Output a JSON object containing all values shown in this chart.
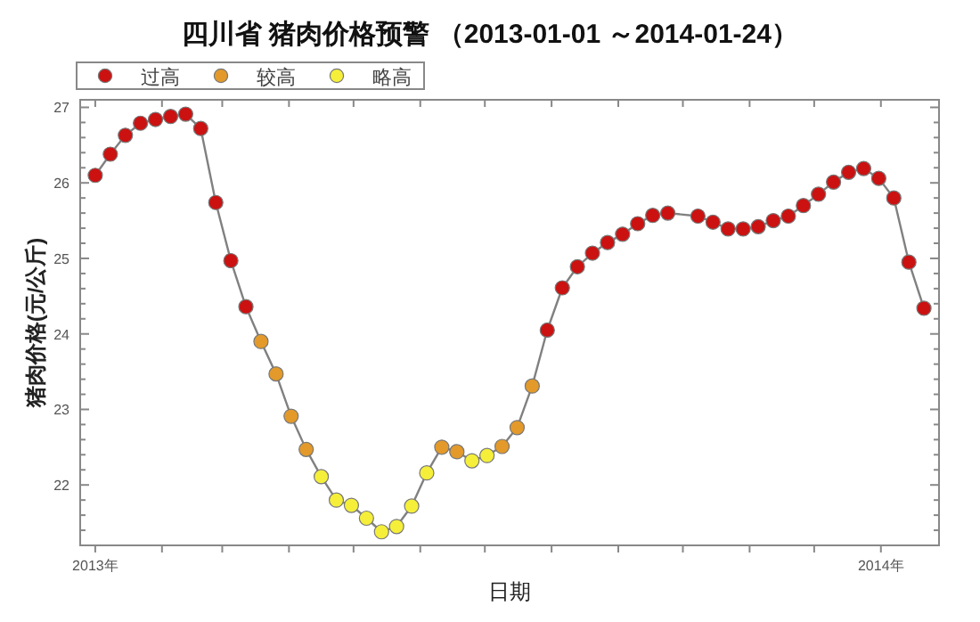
{
  "chart_data": {
    "type": "line",
    "title": "四川省 猪肉价格预警 （2013-01-01 ～2014-01-24）",
    "xlabel": "日期",
    "ylabel": "猪肉价格(元/公斤)",
    "x": [
      "2013-01-01",
      "2013-01-08",
      "2013-01-15",
      "2013-01-22",
      "2013-01-29",
      "2013-02-05",
      "2013-02-12",
      "2013-02-19",
      "2013-02-26",
      "2013-03-05",
      "2013-03-12",
      "2013-03-19",
      "2013-03-26",
      "2013-04-02",
      "2013-04-09",
      "2013-04-16",
      "2013-04-23",
      "2013-04-30",
      "2013-05-07",
      "2013-05-14",
      "2013-05-21",
      "2013-05-28",
      "2013-06-04",
      "2013-06-11",
      "2013-06-18",
      "2013-06-25",
      "2013-07-02",
      "2013-07-09",
      "2013-07-16",
      "2013-07-23",
      "2013-07-30",
      "2013-08-06",
      "2013-08-13",
      "2013-08-20",
      "2013-08-27",
      "2013-09-03",
      "2013-09-10",
      "2013-09-17",
      "2013-09-24",
      "2013-10-08",
      "2013-10-15",
      "2013-10-22",
      "2013-10-29",
      "2013-11-05",
      "2013-11-12",
      "2013-11-19",
      "2013-11-26",
      "2013-12-03",
      "2013-12-10",
      "2013-12-17",
      "2013-12-24",
      "2013-12-31",
      "2014-01-07",
      "2014-01-14",
      "2014-01-21"
    ],
    "series": [
      {
        "type": "line",
        "color": "#808080",
        "marker": "none",
        "values": [
          26.1,
          26.38,
          26.63,
          26.79,
          26.84,
          26.88,
          26.91,
          26.72,
          25.74,
          24.97,
          24.36,
          23.9,
          23.47,
          22.91,
          22.47,
          22.11,
          21.8,
          21.73,
          21.56,
          21.38,
          21.45,
          21.72,
          22.16,
          22.5,
          22.44,
          22.32,
          22.39,
          22.51,
          22.76,
          23.31,
          24.05,
          24.61,
          24.89,
          25.07,
          25.21,
          25.32,
          25.46,
          25.57,
          25.6,
          25.56,
          25.48,
          25.39,
          25.39,
          25.42,
          25.5,
          25.56,
          25.7,
          25.85,
          26.01,
          26.14,
          26.19,
          26.06,
          25.8,
          24.95,
          24.34
        ]
      },
      {
        "type": "scatter",
        "name": "过高",
        "color": "#cc1111",
        "marker": "circle",
        "values": [
          26.1,
          26.38,
          26.63,
          26.79,
          26.84,
          26.88,
          26.91,
          26.72,
          25.74,
          24.97,
          24.36,
          null,
          null,
          null,
          null,
          null,
          null,
          null,
          null,
          null,
          null,
          null,
          null,
          null,
          null,
          null,
          null,
          null,
          null,
          null,
          24.05,
          24.61,
          24.89,
          25.07,
          25.21,
          25.32,
          25.46,
          25.57,
          25.6,
          25.56,
          25.48,
          25.39,
          25.39,
          25.42,
          25.5,
          25.56,
          25.7,
          25.85,
          26.01,
          26.14,
          26.19,
          26.06,
          25.8,
          24.95,
          24.34
        ]
      },
      {
        "type": "scatter",
        "name": "较高",
        "color": "#e39a2a",
        "marker": "circle",
        "values": [
          null,
          null,
          null,
          null,
          null,
          null,
          null,
          null,
          null,
          null,
          null,
          23.9,
          23.47,
          22.91,
          22.47,
          null,
          null,
          null,
          null,
          null,
          null,
          null,
          null,
          22.5,
          22.44,
          null,
          null,
          22.51,
          22.76,
          23.31,
          null,
          null,
          null,
          null,
          null,
          null,
          null,
          null,
          null,
          null,
          null,
          null,
          null,
          null,
          null,
          null,
          null,
          null,
          null,
          null,
          null,
          null,
          null,
          null,
          null
        ]
      },
      {
        "type": "scatter",
        "name": "略高",
        "color": "#f5ef3a",
        "marker": "circle",
        "values": [
          null,
          null,
          null,
          null,
          null,
          null,
          null,
          null,
          null,
          null,
          null,
          null,
          null,
          null,
          null,
          22.11,
          21.8,
          21.73,
          21.56,
          21.38,
          21.45,
          21.72,
          22.16,
          null,
          null,
          22.32,
          22.39,
          null,
          null,
          null,
          null,
          null,
          null,
          null,
          null,
          null,
          null,
          null,
          null,
          null,
          null,
          null,
          null,
          null,
          null,
          null,
          null,
          null,
          null,
          null,
          null,
          null,
          null,
          null,
          null
        ]
      }
    ],
    "xlim": [
      "2012-12-25",
      "2014-01-28"
    ],
    "xticks": [
      {
        "value": "2013-01-01",
        "label": "2013年"
      },
      {
        "value": "2013-02-01",
        "label": null
      },
      {
        "value": "2013-03-01",
        "label": null
      },
      {
        "value": "2013-04-01",
        "label": null
      },
      {
        "value": "2013-05-01",
        "label": null
      },
      {
        "value": "2013-06-01",
        "label": null
      },
      {
        "value": "2013-07-01",
        "label": null
      },
      {
        "value": "2013-08-01",
        "label": null
      },
      {
        "value": "2013-09-01",
        "label": null
      },
      {
        "value": "2013-10-01",
        "label": null
      },
      {
        "value": "2013-11-01",
        "label": null
      },
      {
        "value": "2013-12-01",
        "label": null
      },
      {
        "value": "2014-01-01",
        "label": "2014年"
      }
    ],
    "ylim": [
      21.2,
      27.1
    ],
    "yticks": [
      {
        "value": 21.4,
        "label": null
      },
      {
        "value": 21.6,
        "label": null
      },
      {
        "value": 21.8,
        "label": null
      },
      22,
      {
        "value": 22.2,
        "label": null
      },
      {
        "value": 22.4,
        "label": null
      },
      {
        "value": 22.6,
        "label": null
      },
      {
        "value": 22.8,
        "label": null
      },
      23,
      {
        "value": 23.2,
        "label": null
      },
      {
        "value": 23.4,
        "label": null
      },
      {
        "value": 23.6,
        "label": null
      },
      {
        "value": 23.8,
        "label": null
      },
      24,
      {
        "value": 24.2,
        "label": null
      },
      {
        "value": 24.4,
        "label": null
      },
      {
        "value": 24.6,
        "label": null
      },
      {
        "value": 24.8,
        "label": null
      },
      25,
      {
        "value": 25.2,
        "label": null
      },
      {
        "value": 25.4,
        "label": null
      },
      {
        "value": 25.6,
        "label": null
      },
      {
        "value": 25.8,
        "label": null
      },
      26,
      {
        "value": 26.2,
        "label": null
      },
      {
        "value": 26.4,
        "label": null
      },
      {
        "value": 26.6,
        "label": null
      },
      {
        "value": 26.8,
        "label": null
      },
      27
    ],
    "grid": false,
    "legend": "top left"
  }
}
